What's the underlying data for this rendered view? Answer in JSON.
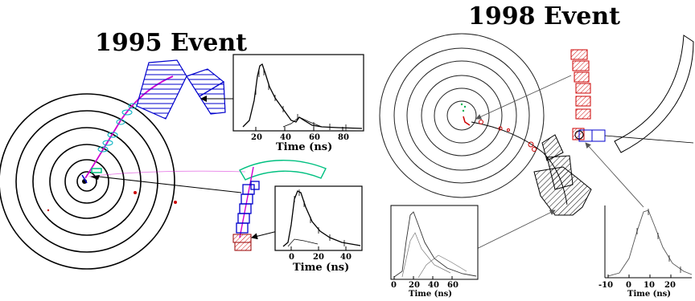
{
  "panels": {
    "left": {
      "title": "1995 Event",
      "inset_top": {
        "xlabel": "Time (ns)",
        "ticks": [
          "20",
          "40",
          "60",
          "80"
        ]
      },
      "inset_bottom": {
        "xlabel": "Time (ns)",
        "ticks": [
          "0",
          "20",
          "40"
        ]
      }
    },
    "right": {
      "title": "1998 Event",
      "inset_left": {
        "xlabel": "Time (ns)",
        "ticks": [
          "0",
          "20",
          "40",
          "60"
        ]
      },
      "inset_right": {
        "xlabel": "Time (ns)",
        "ticks": [
          "-10",
          "0",
          "10",
          "20"
        ]
      }
    }
  },
  "colors": {
    "detector_rings": "#000000",
    "track": "#d000d0",
    "calorimeter_hit": "#0000cc",
    "cluster_hit": "#00c0c0",
    "muon_chamber": "#00c080",
    "red_hit": "#cc0000",
    "hatched_block": "#000000"
  }
}
